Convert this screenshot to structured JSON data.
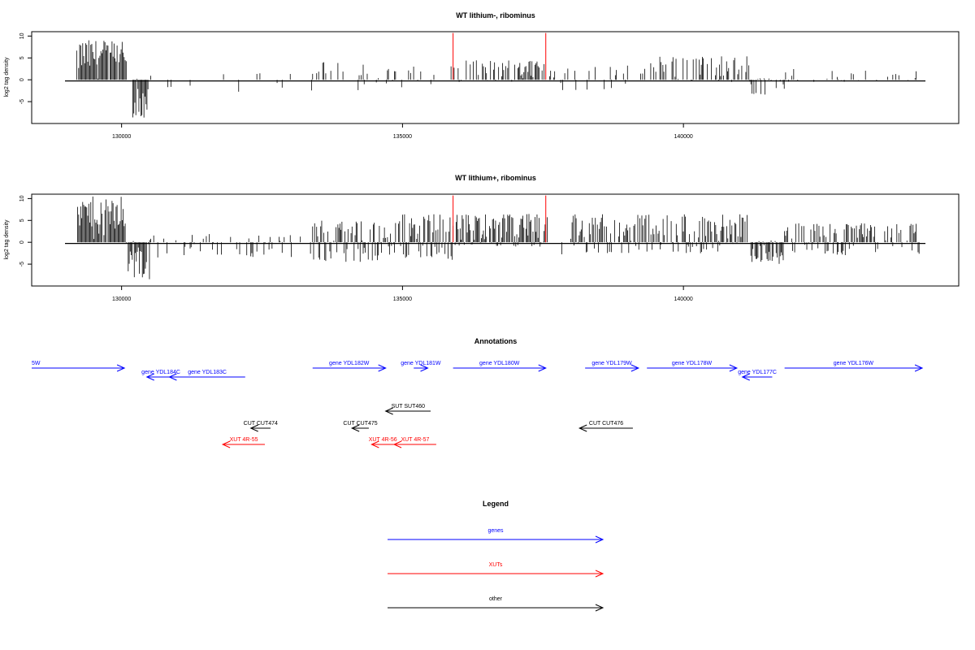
{
  "chart_data": [
    {
      "type": "bar",
      "title": "WT lithium-, ribominus",
      "ylabel": "log2 tag density",
      "xlabel": "",
      "xlim": [
        128400,
        144900
      ],
      "ylim": [
        -10,
        11
      ],
      "yticks": [
        -5,
        0,
        5,
        10
      ],
      "xticks": [
        130000,
        135000,
        140000
      ],
      "markers": [
        135900,
        137550
      ],
      "regions": [
        {
          "start": 129200,
          "end": 130100,
          "min": -0.5,
          "max": 9.2,
          "density": 0.9
        },
        {
          "start": 130200,
          "end": 130480,
          "min": -8.8,
          "max": 0.3,
          "density": 0.9
        },
        {
          "start": 130500,
          "end": 133400,
          "min": -3.2,
          "max": 1.5,
          "density": 0.06
        },
        {
          "start": 133400,
          "end": 135000,
          "min": -3.0,
          "max": 4.2,
          "density": 0.35
        },
        {
          "start": 135000,
          "end": 135900,
          "min": -1.0,
          "max": 3.5,
          "density": 0.2
        },
        {
          "start": 135900,
          "end": 137600,
          "min": -0.5,
          "max": 4.5,
          "density": 0.55
        },
        {
          "start": 137600,
          "end": 139400,
          "min": -2.5,
          "max": 3.5,
          "density": 0.2
        },
        {
          "start": 139400,
          "end": 141200,
          "min": -0.5,
          "max": 5.5,
          "density": 0.45
        },
        {
          "start": 141200,
          "end": 141800,
          "min": -3.5,
          "max": 0.5,
          "density": 0.5
        },
        {
          "start": 141800,
          "end": 144200,
          "min": -0.5,
          "max": 2.5,
          "density": 0.15
        }
      ]
    },
    {
      "type": "bar",
      "title": "WT lithium+, ribominus",
      "ylabel": "log2 tag density",
      "xlabel": "",
      "xlim": [
        128400,
        144900
      ],
      "ylim": [
        -10,
        11
      ],
      "yticks": [
        -5,
        0,
        5,
        10
      ],
      "xticks": [
        130000,
        135000,
        140000
      ],
      "markers": [
        135900,
        137550
      ],
      "regions": [
        {
          "start": 129200,
          "end": 130100,
          "min": -0.5,
          "max": 10.5,
          "density": 0.95
        },
        {
          "start": 130100,
          "end": 130500,
          "min": -8.8,
          "max": 0.3,
          "density": 0.9
        },
        {
          "start": 130500,
          "end": 133400,
          "min": -3.5,
          "max": 2.0,
          "density": 0.25
        },
        {
          "start": 133400,
          "end": 135000,
          "min": -4.5,
          "max": 5.3,
          "density": 0.7
        },
        {
          "start": 135000,
          "end": 135900,
          "min": -4.0,
          "max": 6.5,
          "density": 0.8
        },
        {
          "start": 135900,
          "end": 137600,
          "min": -1.0,
          "max": 6.5,
          "density": 0.95
        },
        {
          "start": 137600,
          "end": 138000,
          "min": -3.0,
          "max": 1.0,
          "density": 0.15
        },
        {
          "start": 138000,
          "end": 141200,
          "min": -2.5,
          "max": 6.5,
          "density": 0.7
        },
        {
          "start": 141200,
          "end": 141800,
          "min": -5.0,
          "max": 0.5,
          "density": 0.9
        },
        {
          "start": 141800,
          "end": 144200,
          "min": -3.0,
          "max": 4.5,
          "density": 0.6
        }
      ]
    }
  ],
  "annotations": {
    "title": "Annotations",
    "features": [
      {
        "label": "5W",
        "start": 128400,
        "end": 130050,
        "strand": "+",
        "kind": "gene",
        "row": 0
      },
      {
        "label": "gene YDL184C",
        "start": 130450,
        "end": 130950,
        "strand": "-",
        "kind": "gene",
        "row": 1
      },
      {
        "label": "gene YDL183C",
        "start": 130850,
        "end": 132200,
        "strand": "-",
        "kind": "gene",
        "row": 1
      },
      {
        "label": "gene YDL182W",
        "start": 133400,
        "end": 134700,
        "strand": "+",
        "kind": "gene",
        "row": 0
      },
      {
        "label": "gene YDL181W",
        "start": 135200,
        "end": 135450,
        "strand": "+",
        "kind": "gene",
        "row": 0
      },
      {
        "label": "gene YDL180W",
        "start": 135900,
        "end": 137550,
        "strand": "+",
        "kind": "gene",
        "row": 0
      },
      {
        "label": "gene YDL179W",
        "start": 138250,
        "end": 139200,
        "strand": "+",
        "kind": "gene",
        "row": 0
      },
      {
        "label": "gene YDL178W",
        "start": 139350,
        "end": 140950,
        "strand": "+",
        "kind": "gene",
        "row": 0
      },
      {
        "label": "gene YDL177C",
        "start": 141050,
        "end": 141580,
        "strand": "-",
        "kind": "gene",
        "row": 1
      },
      {
        "label": "gene YDL176W",
        "start": 141800,
        "end": 144250,
        "strand": "+",
        "kind": "gene",
        "row": 0
      },
      {
        "label": "SUT SUT460",
        "start": 134700,
        "end": 135500,
        "strand": "-",
        "kind": "other",
        "row": 2
      },
      {
        "label": "CUT CUT474",
        "start": 132300,
        "end": 132650,
        "strand": "-",
        "kind": "other",
        "row": 3
      },
      {
        "label": "CUT CUT475",
        "start": 134100,
        "end": 134400,
        "strand": "-",
        "kind": "other",
        "row": 3
      },
      {
        "label": "CUT CUT476",
        "start": 138150,
        "end": 139100,
        "strand": "-",
        "kind": "other",
        "row": 3
      },
      {
        "label": "XUT 4R-55",
        "start": 131800,
        "end": 132550,
        "strand": "-",
        "kind": "xut",
        "row": 4
      },
      {
        "label": "XUT 4R-56",
        "start": 134450,
        "end": 134850,
        "strand": "-",
        "kind": "xut",
        "row": 4
      },
      {
        "label": "XUT 4R-57",
        "start": 134850,
        "end": 135600,
        "strand": "-",
        "kind": "xut",
        "row": 4
      }
    ]
  },
  "legend": {
    "title": "Legend",
    "items": [
      {
        "label": "genes",
        "color": "#0000ff"
      },
      {
        "label": "XUTs",
        "color": "#ff0000"
      },
      {
        "label": "other",
        "color": "#000000"
      }
    ]
  },
  "colors": {
    "gene": "#0000ff",
    "xut": "#ff0000",
    "other": "#000000",
    "marker": "#ff0000",
    "bars": "#000000"
  }
}
